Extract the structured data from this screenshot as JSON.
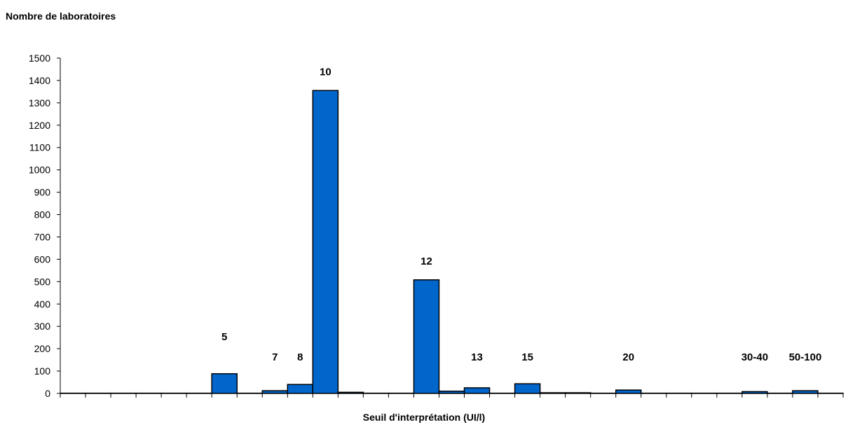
{
  "chart_data": {
    "type": "bar",
    "ylabel": "Nombre de laboratoires",
    "xlabel": "Seuil d'interprétation (UI/l)",
    "ylim": [
      0,
      1500
    ],
    "yticks": [
      0,
      100,
      200,
      300,
      400,
      500,
      600,
      700,
      800,
      900,
      1000,
      1100,
      1200,
      1300,
      1400,
      1500
    ],
    "bar_color": "#0066cc",
    "values": [
      1,
      1,
      1,
      1,
      1,
      1,
      88,
      1,
      12,
      40,
      1355,
      5,
      1,
      1,
      508,
      10,
      25,
      1,
      43,
      3,
      3,
      1,
      15,
      1,
      1,
      1,
      1,
      8,
      1,
      12,
      1
    ],
    "data_labels": [
      {
        "index": 6,
        "label": "5"
      },
      {
        "index": 8,
        "label": "7"
      },
      {
        "index": 9,
        "label": "8"
      },
      {
        "index": 10,
        "label": "10"
      },
      {
        "index": 14,
        "label": "12"
      },
      {
        "index": 16,
        "label": "13"
      },
      {
        "index": 18,
        "label": "15"
      },
      {
        "index": 22,
        "label": "20"
      },
      {
        "index": 27,
        "label": "30-40"
      },
      {
        "index": 29,
        "label": "50-100"
      }
    ]
  }
}
